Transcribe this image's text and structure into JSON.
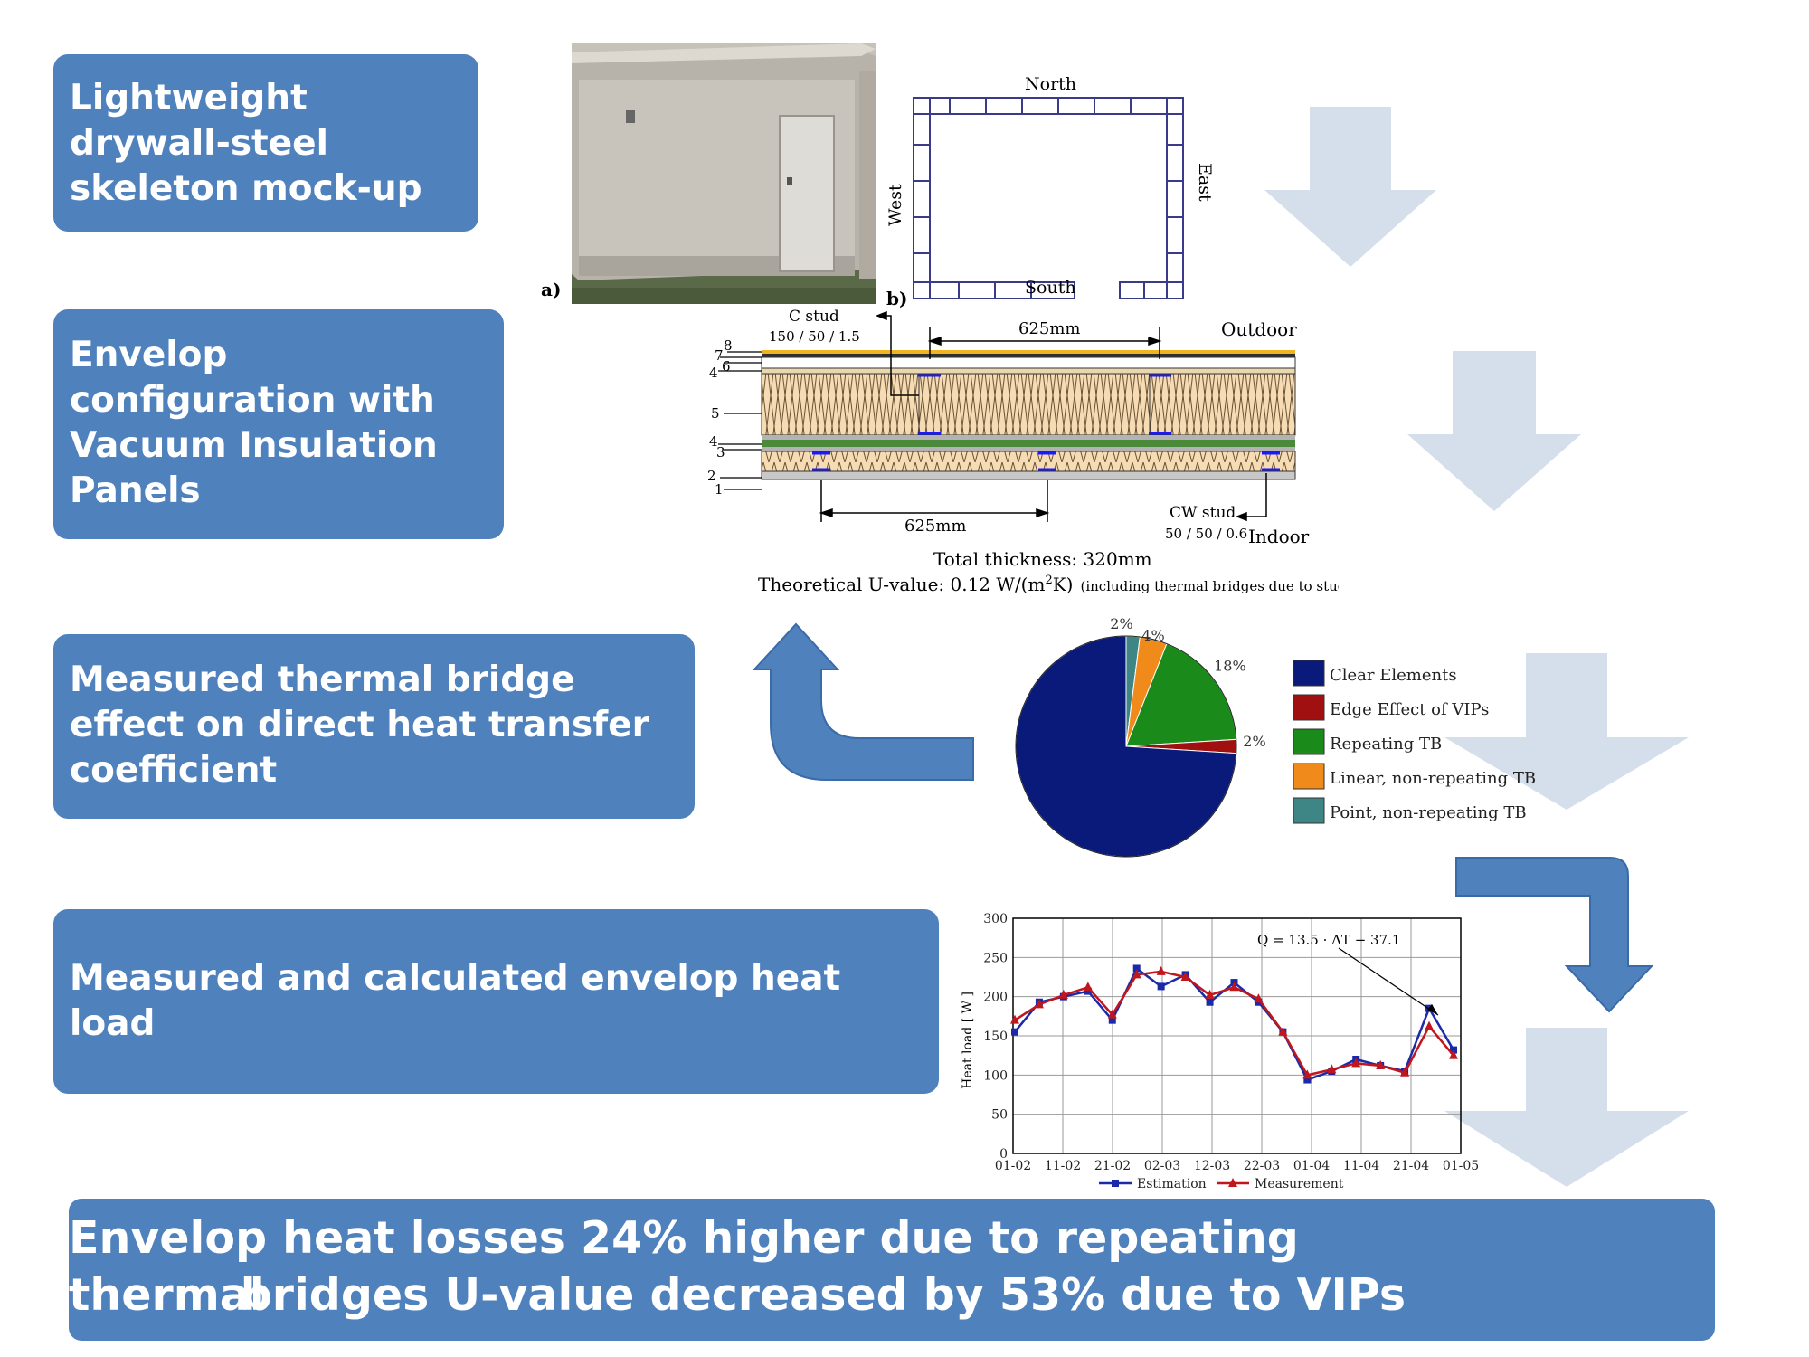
{
  "boxes": {
    "box1": {
      "lines": [
        "Lightweight",
        "drywall-steel",
        "skeleton mock-up"
      ]
    },
    "box2": {
      "lines": [
        "Envelop",
        "configuration with",
        "Vacuum Insulation",
        "Panels"
      ]
    },
    "box3": {
      "lines": [
        "Measured thermal bridge",
        "effect on direct heat transfer",
        "coefficient"
      ]
    },
    "box4": {
      "lines": [
        "Measured and calculated envelop heat",
        "load"
      ]
    }
  },
  "banner": {
    "line1": "Envelop heat losses 24% higher due to repeating thermal",
    "line2": "bridges   U-value  decreased by 53% due to VIPs"
  },
  "photo": {
    "label": "a)"
  },
  "plan": {
    "label": "b)",
    "north": "North",
    "south": "South",
    "west": "West",
    "east": "East"
  },
  "section": {
    "c_stud": "C stud",
    "c_stud_dims": "150 / 50 / 1.5",
    "dim_top": "625mm",
    "dim_bottom": "625mm",
    "outdoor": "Outdoor",
    "indoor": "Indoor",
    "cw_stud": "CW stud",
    "cw_stud_dims": "50 / 50 / 0.6",
    "layer_numbers": [
      "8",
      "7",
      "6",
      "4",
      "5",
      "4",
      "3",
      "2",
      "1"
    ],
    "total_thickness": "Total thickness: 320mm",
    "u_value_main": "Theoretical U-value: 0.12 W/(m",
    "u_value_sup": "2",
    "u_value_end": "K)",
    "u_value_note": "(including thermal bridges due to studs)"
  },
  "chart_data": [
    {
      "type": "pie",
      "slices": [
        {
          "label": "Clear Elements",
          "value": 74,
          "display": "74%",
          "color": "#0a1a7a"
        },
        {
          "label": "Edge Effect of VIPs",
          "value": 2,
          "display": "2%",
          "color": "#a01010"
        },
        {
          "label": "Repeating TB",
          "value": 18,
          "display": "18%",
          "color": "#1a8a1a"
        },
        {
          "label": "Linear, non-repeating TB",
          "value": 4,
          "display": "4%",
          "color": "#f08a1a"
        },
        {
          "label": "Point, non-repeating TB",
          "value": 2,
          "display": "2%",
          "color": "#3e8585"
        }
      ],
      "legend_position": "right"
    },
    {
      "type": "line",
      "ylabel": "Heat load  [ W ]",
      "ylim": [
        0,
        300
      ],
      "yticks": [
        "0",
        "50",
        "100",
        "150",
        "200",
        "250",
        "300"
      ],
      "xticks": [
        "01-02",
        "11-02",
        "21-02",
        "02-03",
        "12-03",
        "22-03",
        "01-04",
        "11-04",
        "21-04",
        "01-05"
      ],
      "grid": true,
      "annotation": "Q = 13.5 · ΔT − 37.1",
      "series": [
        {
          "name": "Estimation",
          "color": "#1a2aa8",
          "marker": "square",
          "values": [
            155,
            193,
            200,
            207,
            170,
            236,
            213,
            228,
            193,
            218,
            193,
            155,
            94,
            105,
            120,
            112,
            105,
            185,
            132
          ]
        },
        {
          "name": "Measurement",
          "color": "#c0161c",
          "marker": "star",
          "values": [
            170,
            190,
            202,
            212,
            177,
            228,
            232,
            225,
            202,
            212,
            197,
            155,
            100,
            107,
            115,
            112,
            103,
            162,
            125
          ]
        }
      ]
    }
  ]
}
